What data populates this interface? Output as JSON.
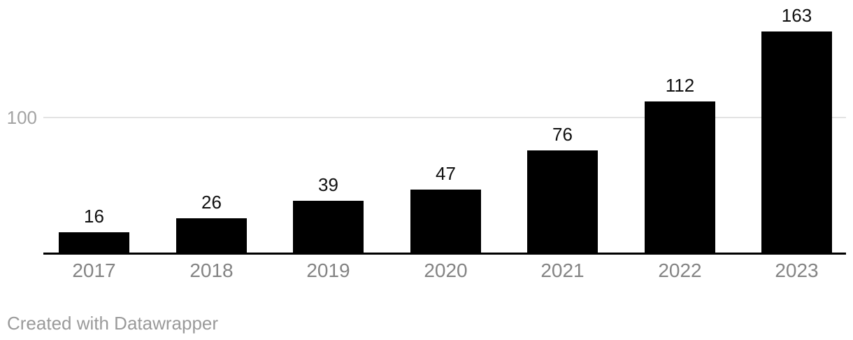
{
  "chart_data": {
    "type": "bar",
    "categories": [
      "2017",
      "2018",
      "2019",
      "2020",
      "2021",
      "2022",
      "2023"
    ],
    "values": [
      16,
      26,
      39,
      47,
      76,
      112,
      163
    ],
    "title": "",
    "xlabel": "",
    "ylabel": "",
    "ylim": [
      0,
      185
    ],
    "yticks": [
      {
        "value": 100,
        "label": "100"
      }
    ],
    "legend": "none",
    "grid": "single horizontal gridline at y=100",
    "value_labels_shown": true
  },
  "colors": {
    "bar": "#000000",
    "axis_line": "#000000",
    "gridline": "#e3e3e3",
    "y_tick_label": "#a3a3a3",
    "category_label": "#848484",
    "value_label": "#111111",
    "attribution": "#9a9a9a",
    "background": "#ffffff"
  },
  "footer": {
    "attribution": "Created with Datawrapper"
  }
}
